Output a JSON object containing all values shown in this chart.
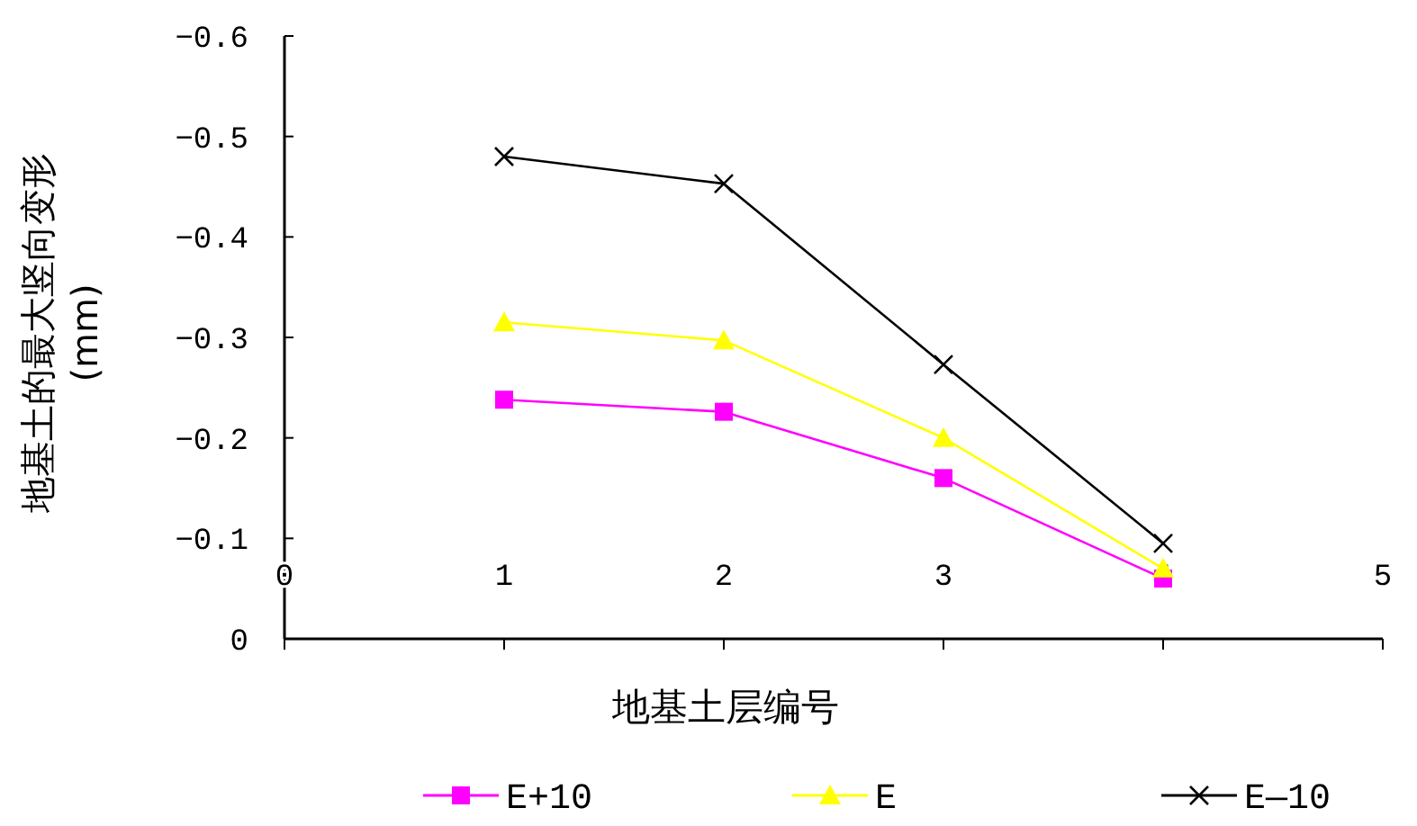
{
  "chart_data": {
    "type": "line",
    "xlabel": "地基土层编号",
    "ylabel": "地基土的最大竖向变形\n(mm)",
    "x": [
      1,
      2,
      3,
      4
    ],
    "xlim": [
      0,
      5
    ],
    "xticks": [
      0,
      1,
      2,
      3,
      4,
      5
    ],
    "ylim": [
      0,
      -0.6
    ],
    "yticks": [
      0,
      -0.1,
      -0.2,
      -0.3,
      -0.4,
      -0.5,
      -0.6
    ],
    "legend": "bottom",
    "grid": false,
    "series": [
      {
        "name": "E+10",
        "color": "#ff00ff",
        "marker": "square",
        "values": [
          -0.238,
          -0.226,
          -0.16,
          -0.06
        ]
      },
      {
        "name": "E",
        "color": "#ffff00",
        "marker": "triangle",
        "values": [
          -0.315,
          -0.297,
          -0.2,
          -0.07
        ]
      },
      {
        "name": "E—10",
        "color": "#000000",
        "marker": "cross",
        "values": [
          -0.48,
          -0.453,
          -0.273,
          -0.095
        ]
      }
    ]
  }
}
